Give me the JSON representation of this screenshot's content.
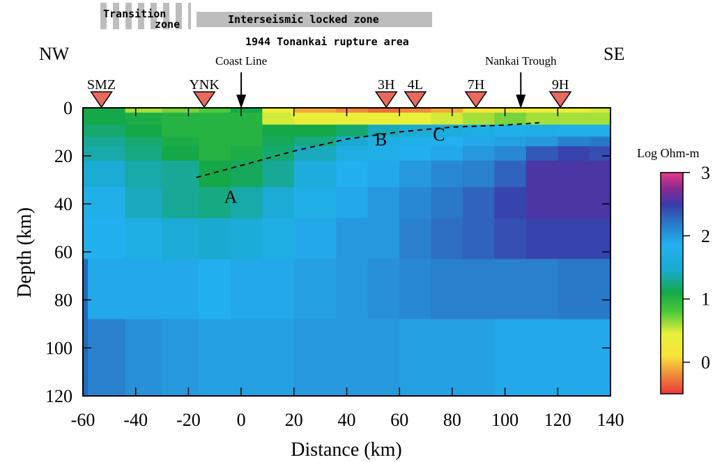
{
  "chart_data": {
    "type": "heatmap",
    "xlabel": "Distance (km)",
    "ylabel": "Depth (km)",
    "xlim": [
      -60,
      140
    ],
    "ylim": [
      0,
      120
    ],
    "y_inverted": true,
    "xticks": [
      -60,
      -40,
      -20,
      0,
      20,
      40,
      60,
      80,
      100,
      120,
      140
    ],
    "yticks": [
      0,
      20,
      40,
      60,
      80,
      100,
      120
    ],
    "colorbar": {
      "label": "Log Ohm-m",
      "ticks": [
        0,
        1,
        2,
        3
      ],
      "range": [
        -0.5,
        3.0
      ],
      "stops": [
        {
          "v": -0.5,
          "color": "#e83a3a"
        },
        {
          "v": -0.2,
          "color": "#f08a3a"
        },
        {
          "v": 0.1,
          "color": "#f8e43a"
        },
        {
          "v": 0.45,
          "color": "#e8f03a"
        },
        {
          "v": 0.8,
          "color": "#4cc83a"
        },
        {
          "v": 1.1,
          "color": "#14a848"
        },
        {
          "v": 1.45,
          "color": "#1aaad0"
        },
        {
          "v": 1.85,
          "color": "#22b0ee"
        },
        {
          "v": 2.2,
          "color": "#2a78c8"
        },
        {
          "v": 2.5,
          "color": "#3a3aa8"
        },
        {
          "v": 2.75,
          "color": "#8a2a90"
        },
        {
          "v": 3.0,
          "color": "#e83a8a"
        }
      ]
    },
    "model": {
      "x_edges": [
        -60,
        -44,
        -30,
        -16,
        -4,
        8,
        20,
        36,
        48,
        60,
        72,
        84,
        96,
        108,
        120,
        132,
        140
      ],
      "layers": [
        {
          "depth": [
            0,
            2
          ],
          "values": [
            1.1,
            0.6,
            0.7,
            0.8,
            1.1,
            0.3,
            -0.1,
            -0.2,
            -0.3,
            -0.2,
            -0.1,
            0.1,
            0.2,
            0.3,
            0.4,
            0.5
          ]
        },
        {
          "depth": [
            2,
            7
          ],
          "values": [
            1.1,
            1.05,
            1.0,
            1.0,
            1.0,
            0.5,
            0.4,
            0.4,
            0.4,
            0.45,
            0.5,
            0.6,
            0.7,
            0.6,
            0.6,
            0.6
          ]
        },
        {
          "depth": [
            7,
            12
          ],
          "values": [
            1.2,
            1.1,
            1.0,
            1.0,
            1.0,
            1.1,
            1.1,
            1.2,
            1.4,
            1.5,
            1.6,
            1.7,
            1.8,
            1.7,
            1.75,
            1.75
          ]
        },
        {
          "depth": [
            12,
            16
          ],
          "values": [
            1.3,
            1.2,
            1.05,
            1.0,
            1.0,
            1.15,
            1.25,
            1.45,
            1.7,
            1.8,
            1.85,
            1.9,
            1.95,
            2.0,
            2.15,
            2.2
          ]
        },
        {
          "depth": [
            16,
            22
          ],
          "values": [
            1.35,
            1.25,
            1.1,
            1.0,
            1.05,
            1.2,
            1.4,
            1.7,
            1.8,
            1.85,
            1.9,
            2.0,
            2.1,
            2.35,
            2.45,
            2.4
          ]
        },
        {
          "depth": [
            22,
            33
          ],
          "values": [
            1.5,
            1.35,
            1.3,
            1.1,
            1.15,
            1.3,
            1.6,
            1.85,
            1.9,
            2.0,
            2.1,
            2.15,
            2.3,
            2.55,
            2.55,
            2.55
          ]
        },
        {
          "depth": [
            33,
            46
          ],
          "values": [
            1.8,
            1.4,
            1.3,
            1.25,
            1.35,
            1.5,
            1.75,
            1.9,
            2.0,
            2.1,
            2.2,
            2.3,
            2.45,
            2.55,
            2.55,
            2.55
          ]
        },
        {
          "depth": [
            46,
            63
          ],
          "values": [
            1.85,
            1.7,
            1.5,
            1.45,
            1.55,
            1.7,
            1.9,
            2.0,
            2.0,
            2.15,
            2.25,
            2.3,
            2.4,
            2.45,
            2.45,
            2.45
          ]
        },
        {
          "depth": [
            63,
            88
          ],
          "values": [
            1.9,
            1.9,
            1.9,
            1.85,
            1.9,
            1.9,
            1.95,
            2.0,
            2.05,
            2.1,
            2.15,
            2.15,
            2.15,
            2.15,
            2.2,
            2.2
          ]
        },
        {
          "depth": [
            88,
            120
          ],
          "values": [
            2.15,
            2.05,
            2.0,
            1.95,
            1.95,
            1.95,
            2.0,
            2.0,
            2.0,
            1.95,
            1.95,
            1.95,
            1.9,
            1.9,
            1.9,
            1.9
          ]
        }
      ]
    },
    "stations": [
      {
        "name": "SMZ",
        "x": -53
      },
      {
        "name": "YNK",
        "x": -14
      },
      {
        "name": "3H",
        "x": 55
      },
      {
        "name": "4L",
        "x": 66
      },
      {
        "name": "7H",
        "x": 89
      },
      {
        "name": "9H",
        "x": 121
      }
    ],
    "arrows": [
      {
        "label": "Coast Line",
        "x": 0
      },
      {
        "label": "Nankai Trough",
        "x": 106
      }
    ],
    "slab_line": [
      [
        -17,
        29
      ],
      [
        0,
        24
      ],
      [
        20,
        18
      ],
      [
        40,
        13
      ],
      [
        60,
        10
      ],
      [
        80,
        8
      ],
      [
        100,
        7.2
      ],
      [
        113,
        6.2
      ]
    ],
    "point_labels": [
      {
        "text": "A",
        "x": -4,
        "depth": 37
      },
      {
        "text": "B",
        "x": 53,
        "depth": 13
      },
      {
        "text": "C",
        "x": 75,
        "depth": 11
      }
    ],
    "annotations": {
      "nw": "NW",
      "se": "SE",
      "transition_line1": "Transition",
      "transition_line2": "zone",
      "locked_zone": "Interseismic locked zone",
      "rupture_area": "1944 Tonankai rupture area"
    }
  }
}
